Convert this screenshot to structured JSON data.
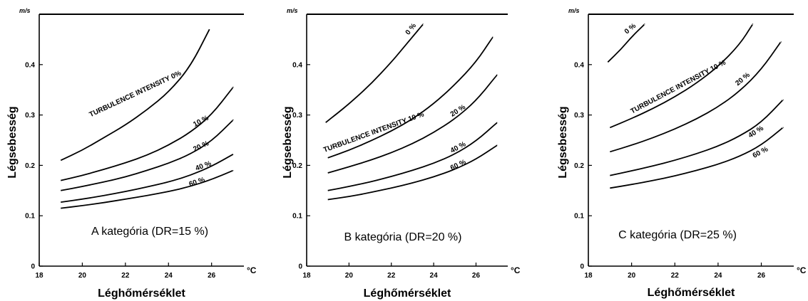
{
  "chart_data": [
    {
      "type": "line",
      "title": "A kategória (DR=15 %)",
      "xlabel": "Léghőmérséklet",
      "ylabel": "Légsebesség",
      "x_unit": "°C",
      "y_unit": "m/s",
      "xlim": [
        18,
        27.5
      ],
      "ylim": [
        0,
        0.5
      ],
      "x_ticks": [
        "18",
        "20",
        "22",
        "24",
        "26"
      ],
      "y_ticks": [
        "0",
        "0.1",
        "0.2",
        "0.3",
        "0.4"
      ],
      "series": [
        {
          "name": "TURBULENCE INTENSITY 0%",
          "x": [
            19,
            20,
            21,
            22,
            23,
            24,
            25,
            25.9
          ],
          "y": [
            0.21,
            0.23,
            0.255,
            0.28,
            0.31,
            0.345,
            0.395,
            0.47
          ]
        },
        {
          "name": "10 %",
          "x": [
            19,
            20,
            21,
            22,
            23,
            24,
            25,
            26,
            27
          ],
          "y": [
            0.17,
            0.18,
            0.192,
            0.205,
            0.22,
            0.24,
            0.265,
            0.3,
            0.355
          ]
        },
        {
          "name": "20 %",
          "x": [
            19,
            20,
            21,
            22,
            23,
            24,
            25,
            26,
            27
          ],
          "y": [
            0.15,
            0.158,
            0.167,
            0.177,
            0.19,
            0.204,
            0.222,
            0.248,
            0.29
          ]
        },
        {
          "name": "40 %",
          "x": [
            19,
            20,
            21,
            22,
            23,
            24,
            25,
            26,
            27
          ],
          "y": [
            0.127,
            0.133,
            0.14,
            0.148,
            0.157,
            0.167,
            0.18,
            0.198,
            0.222
          ]
        },
        {
          "name": "60 %",
          "x": [
            19,
            20,
            21,
            22,
            23,
            24,
            25,
            26,
            27
          ],
          "y": [
            0.115,
            0.12,
            0.126,
            0.133,
            0.14,
            0.148,
            0.158,
            0.172,
            0.19
          ]
        }
      ],
      "curve_labels": [
        "TURBULENCE INTENSITY 0%",
        "10 %",
        "20 %",
        "40 %",
        "60 %"
      ]
    },
    {
      "type": "line",
      "title": "B kategória (DR=20 %)",
      "xlabel": "Léghőmérséklet",
      "ylabel": "Légsebesség",
      "x_unit": "°C",
      "y_unit": "m/s",
      "xlim": [
        18,
        27.5
      ],
      "ylim": [
        0,
        0.5
      ],
      "x_ticks": [
        "18",
        "20",
        "22",
        "24",
        "26"
      ],
      "y_ticks": [
        "0",
        "0.1",
        "0.2",
        "0.3",
        "0.4"
      ],
      "series": [
        {
          "name": "0 %",
          "x": [
            18.9,
            19.5,
            20,
            21,
            22,
            22.5,
            23,
            23.5
          ],
          "y": [
            0.285,
            0.305,
            0.322,
            0.36,
            0.405,
            0.43,
            0.455,
            0.48
          ]
        },
        {
          "name": "TURBULENCE INTENSITY 10 %",
          "x": [
            19,
            20,
            21,
            22,
            23,
            24,
            25,
            26,
            26.8
          ],
          "y": [
            0.215,
            0.23,
            0.248,
            0.268,
            0.292,
            0.322,
            0.36,
            0.405,
            0.455
          ]
        },
        {
          "name": "20 %",
          "x": [
            19,
            20,
            21,
            22,
            23,
            24,
            25,
            26,
            27
          ],
          "y": [
            0.185,
            0.197,
            0.21,
            0.225,
            0.243,
            0.265,
            0.292,
            0.328,
            0.38
          ]
        },
        {
          "name": "40 %",
          "x": [
            19,
            20,
            21,
            22,
            23,
            24,
            25,
            26,
            27
          ],
          "y": [
            0.15,
            0.158,
            0.167,
            0.178,
            0.19,
            0.204,
            0.222,
            0.248,
            0.285
          ]
        },
        {
          "name": "60 %",
          "x": [
            19,
            20,
            21,
            22,
            23,
            24,
            25,
            26,
            27
          ],
          "y": [
            0.132,
            0.138,
            0.146,
            0.155,
            0.165,
            0.177,
            0.192,
            0.212,
            0.24
          ]
        }
      ],
      "curve_labels": [
        "0 %",
        "TURBULENCE INTENSITY 10 %",
        "20 %",
        "40 %",
        "60 %"
      ]
    },
    {
      "type": "line",
      "title": "C kategória (DR=25 %)",
      "xlabel": "Léghőmérséklet",
      "ylabel": "Légsebesség",
      "x_unit": "°C",
      "y_unit": "m/s",
      "xlim": [
        18,
        27.5
      ],
      "ylim": [
        0,
        0.5
      ],
      "x_ticks": [
        "18",
        "20",
        "22",
        "24",
        "26"
      ],
      "y_ticks": [
        "0",
        "0.1",
        "0.2",
        "0.3",
        "0.4"
      ],
      "series": [
        {
          "name": "0 %",
          "x": [
            18.9,
            19.5,
            20,
            20.6
          ],
          "y": [
            0.405,
            0.43,
            0.455,
            0.48
          ]
        },
        {
          "name": "TURBULENCE INTENSITY 10 %",
          "x": [
            19,
            20,
            21,
            22,
            23,
            24,
            25,
            25.6
          ],
          "y": [
            0.275,
            0.293,
            0.313,
            0.336,
            0.363,
            0.396,
            0.44,
            0.48
          ]
        },
        {
          "name": "20 %",
          "x": [
            19,
            20,
            21,
            22,
            23,
            24,
            25,
            26,
            26.9
          ],
          "y": [
            0.227,
            0.24,
            0.255,
            0.272,
            0.292,
            0.316,
            0.347,
            0.39,
            0.445
          ]
        },
        {
          "name": "40 %",
          "x": [
            19,
            20,
            21,
            22,
            23,
            24,
            25,
            26,
            27
          ],
          "y": [
            0.18,
            0.189,
            0.199,
            0.21,
            0.223,
            0.238,
            0.258,
            0.285,
            0.33
          ]
        },
        {
          "name": "60 %",
          "x": [
            19,
            20,
            21,
            22,
            23,
            24,
            25,
            26,
            27
          ],
          "y": [
            0.155,
            0.162,
            0.17,
            0.179,
            0.19,
            0.202,
            0.218,
            0.24,
            0.275
          ]
        }
      ],
      "curve_labels": [
        "0 %",
        "TURBULENCE INTENSITY 10 %",
        "20 %",
        "40 %",
        "60 %"
      ]
    }
  ]
}
